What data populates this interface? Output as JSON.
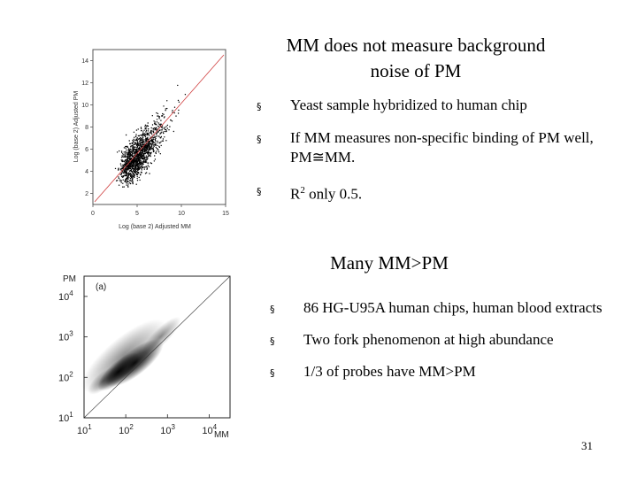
{
  "slide": {
    "title1": "MM does not measure background noise of PM",
    "title2": "Many MM>PM",
    "page_number": "31"
  },
  "bullets_top": [
    {
      "text": "Yeast sample hybridized to human chip"
    },
    {
      "text": " If MM measures non-specific binding of PM well, PM≅MM."
    },
    {
      "prefix": " R",
      "sup": "2",
      "suffix": " only 0.5."
    }
  ],
  "bullets_bottom": [
    {
      "text": "86 HG-U95A human chips, human blood extracts"
    },
    {
      "text": "Two fork phenomenon at high abundance"
    },
    {
      "text": "1/3 of probes have MM>PM"
    }
  ],
  "bullet_glyph": "§",
  "plot_top": {
    "xlabel": "Log (base 2) Adjusted MM",
    "ylabel": "Log (base 2) Adjusted PM",
    "xticks": [
      "0",
      "5",
      "10",
      "15"
    ],
    "yticks": [
      "2",
      "4",
      "6",
      "8",
      "10",
      "12",
      "14"
    ],
    "colors": {
      "points": "#000000",
      "diagonal": "#d04040"
    }
  },
  "plot_bottom": {
    "panel_label": "(a)",
    "xlabel": "MM",
    "ylabel": "PM",
    "tick_base": "10",
    "xtick_exps": [
      "1",
      "2",
      "3",
      "4"
    ],
    "ytick_exps": [
      "1",
      "2",
      "3",
      "4"
    ]
  }
}
